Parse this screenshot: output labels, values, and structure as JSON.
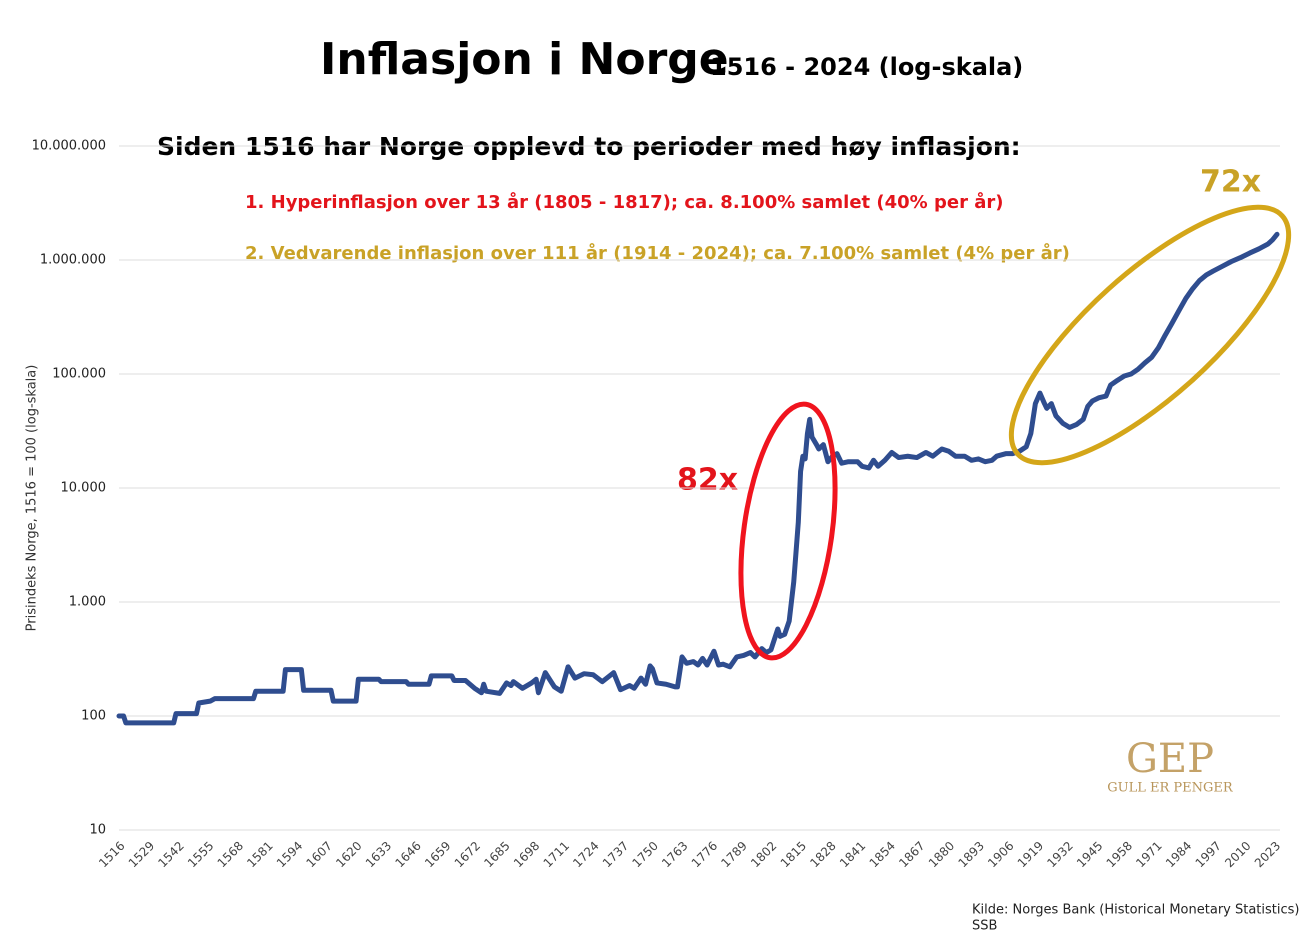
{
  "chart_data": {
    "type": "line",
    "title": "Inflasjon i Norge",
    "subtitle": "1516 - 2024 (log-skala)",
    "y_label": "Prisindeks Norge, 1516 = 100 (log-skala)",
    "annotations": {
      "heading": "Siden 1516 har Norge opplevd to perioder med høy inflasjon:",
      "period_1": "1. Hyperinflasjon over 13 år (1805 - 1817); ca. 8.100% samlet (40% per år)",
      "period_2": "2. Vedvarende inflasjon over 111 år (1914 - 2024); ca. 7.100% samlet (4% per år)",
      "multiplier_1": "82x",
      "multiplier_2": "72x"
    },
    "source": [
      "Kilde: Norges Bank (Historical Monetary Statistics),",
      "SSB"
    ],
    "logo": {
      "mark": "GEP",
      "text": "GULL ER PENGER"
    },
    "color": "#2f4d8f",
    "log_scale": true,
    "grid": true,
    "xlim": [
      1516,
      2024
    ],
    "ylim": [
      10,
      10000000
    ],
    "yticks": [
      10,
      100,
      {
        "value": 1000,
        "label": "1.000"
      },
      {
        "value": 10000,
        "label": "10.000"
      },
      {
        "value": 100000,
        "label": "100.000"
      },
      {
        "value": 1000000,
        "label": "1.000.000"
      },
      {
        "value": 10000000,
        "label": "10.000.000"
      }
    ],
    "xticks": [
      1516,
      1529,
      1542,
      1555,
      1568,
      1581,
      1594,
      1607,
      1620,
      1633,
      1646,
      1659,
      1672,
      1685,
      1698,
      1711,
      1724,
      1737,
      1750,
      1763,
      1776,
      1789,
      1802,
      1815,
      1828,
      1841,
      1854,
      1867,
      1880,
      1893,
      1906,
      1919,
      1932,
      1945,
      1958,
      1971,
      1984,
      1997,
      2010,
      2023
    ],
    "x": [
      1516,
      1518,
      1519,
      1540,
      1541,
      1550,
      1551,
      1556,
      1558,
      1575,
      1576,
      1588,
      1589,
      1596,
      1597,
      1609,
      1610,
      1620,
      1621,
      1630,
      1631,
      1642,
      1643,
      1652,
      1653,
      1662,
      1663,
      1668,
      1672,
      1675,
      1676,
      1677,
      1683,
      1686,
      1688,
      1689,
      1693,
      1697,
      1699,
      1700,
      1703,
      1707,
      1710,
      1713,
      1716,
      1720,
      1724,
      1728,
      1733,
      1736,
      1740,
      1742,
      1745,
      1747,
      1749,
      1750,
      1752,
      1756,
      1760,
      1761,
      1763,
      1765,
      1768,
      1770,
      1772,
      1774,
      1777,
      1779,
      1781,
      1784,
      1787,
      1790,
      1793,
      1795,
      1798,
      1800,
      1802,
      1805,
      1806,
      1808,
      1810,
      1812,
      1814,
      1815,
      1816,
      1817,
      1818,
      1819,
      1820,
      1822,
      1823,
      1825,
      1827,
      1829,
      1831,
      1833,
      1836,
      1840,
      1842,
      1845,
      1847,
      1849,
      1852,
      1855,
      1858,
      1862,
      1866,
      1870,
      1873,
      1877,
      1880,
      1883,
      1887,
      1890,
      1893,
      1896,
      1899,
      1901,
      1905,
      1908,
      1911,
      1914,
      1916,
      1918,
      1920,
      1922,
      1923,
      1925,
      1927,
      1930,
      1933,
      1936,
      1939,
      1941,
      1943,
      1946,
      1949,
      1951,
      1954,
      1957,
      1960,
      1963,
      1966,
      1969,
      1972,
      1975,
      1978,
      1981,
      1984,
      1987,
      1990,
      1993,
      1996,
      2000,
      2004,
      2008,
      2012,
      2016,
      2020,
      2022,
      2024
    ],
    "values": [
      100,
      100,
      87,
      87,
      105,
      105,
      130,
      135,
      142,
      142,
      165,
      165,
      255,
      255,
      168,
      168,
      135,
      135,
      210,
      210,
      200,
      200,
      190,
      190,
      225,
      225,
      205,
      205,
      175,
      160,
      190,
      165,
      158,
      195,
      185,
      200,
      175,
      195,
      210,
      160,
      240,
      180,
      165,
      270,
      215,
      235,
      230,
      200,
      240,
      170,
      185,
      175,
      215,
      190,
      275,
      260,
      195,
      190,
      180,
      180,
      330,
      290,
      300,
      280,
      320,
      280,
      370,
      280,
      285,
      270,
      330,
      340,
      360,
      330,
      390,
      360,
      380,
      580,
      500,
      520,
      680,
      1500,
      5000,
      14000,
      19000,
      18000,
      30000,
      40000,
      28000,
      24000,
      22000,
      24000,
      17000,
      19000,
      20000,
      16500,
      17000,
      17000,
      15500,
      15000,
      17500,
      15500,
      17500,
      20500,
      18500,
      19000,
      18500,
      20500,
      19000,
      22000,
      21000,
      19000,
      19000,
      17500,
      18000,
      17000,
      17500,
      19000,
      20000,
      20000,
      21000,
      23000,
      30000,
      55000,
      68000,
      55000,
      50000,
      55000,
      43000,
      37000,
      34000,
      36000,
      40000,
      52000,
      58000,
      62000,
      64000,
      80000,
      88000,
      96000,
      100000,
      110000,
      125000,
      140000,
      170000,
      220000,
      280000,
      360000,
      460000,
      560000,
      660000,
      740000,
      800000,
      880000,
      970000,
      1050000,
      1150000,
      1250000,
      1380000,
      1500000,
      1680000
    ]
  }
}
